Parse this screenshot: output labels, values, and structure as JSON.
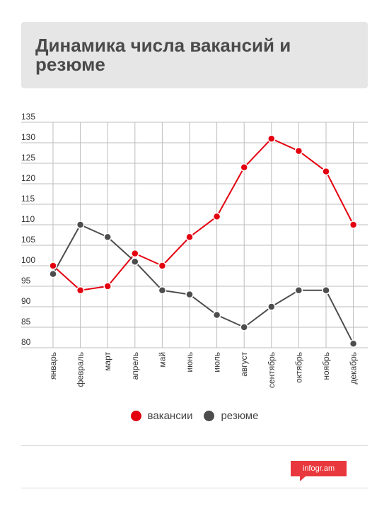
{
  "title": "Динамика числа вакансий и резюме",
  "chart_data": {
    "type": "line",
    "title": "Динамика числа вакансий и резюме",
    "categories": [
      "январь",
      "февраль",
      "март",
      "апрель",
      "май",
      "июнь",
      "июль",
      "август",
      "сентябрь",
      "октябрь",
      "ноябрь",
      "декабрь"
    ],
    "series": [
      {
        "name": "вакансии",
        "color": "#e3000f",
        "values": [
          100,
          94,
          95,
          103,
          100,
          107,
          112,
          124,
          131,
          128,
          123,
          110
        ]
      },
      {
        "name": "резюме",
        "color": "#4d4d4d",
        "values": [
          98,
          110,
          107,
          101,
          94,
          93,
          88,
          85,
          90,
          94,
          94,
          81
        ]
      }
    ],
    "yticks": [
      80,
      85,
      90,
      95,
      100,
      105,
      110,
      115,
      120,
      125,
      130,
      135
    ],
    "ylim": [
      80,
      135
    ],
    "grid": true,
    "legend_position": "bottom"
  },
  "legend": [
    {
      "label": "вакансии",
      "color": "#e3000f"
    },
    {
      "label": "резюме",
      "color": "#4d4d4d"
    }
  ],
  "logo_text": "infogr.am"
}
